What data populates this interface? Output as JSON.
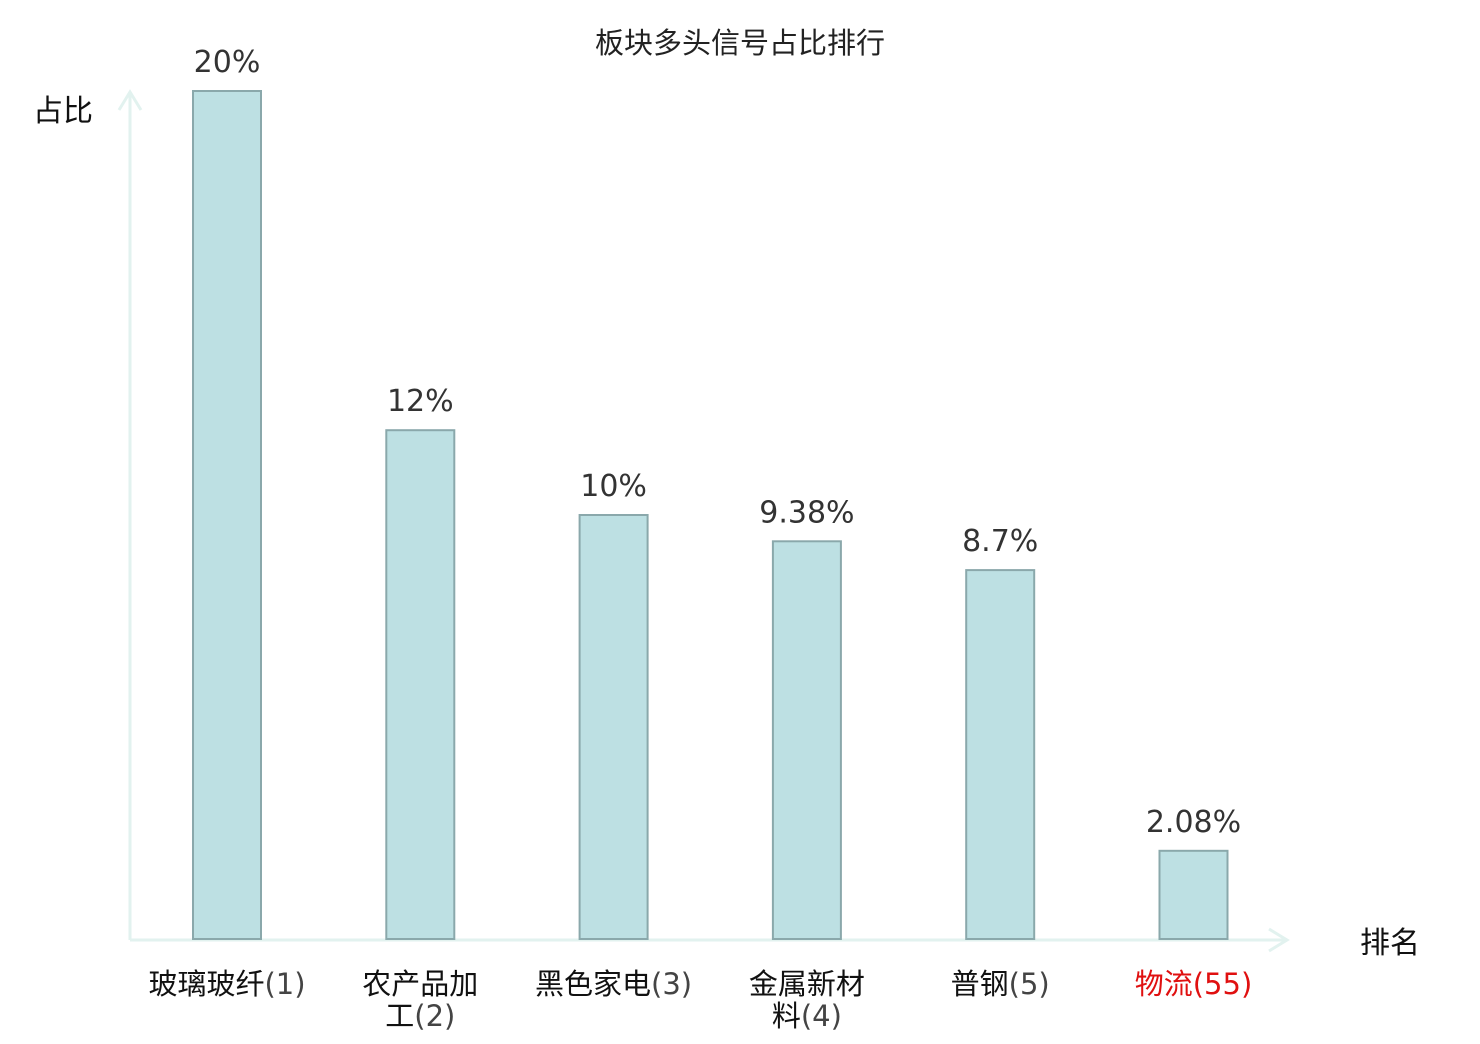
{
  "chart_data": {
    "type": "bar",
    "title": "板块多头信号占比排行",
    "xlabel": "排名",
    "ylabel": "占比",
    "ylim": [
      0,
      20
    ],
    "grid": false,
    "legend": "none",
    "categories": [
      {
        "name": "玻璃玻纤",
        "rank": "(1)",
        "highlight": false
      },
      {
        "name": "农产品加工",
        "rank": "(2)",
        "highlight": false
      },
      {
        "name": "黑色家电",
        "rank": "(3)",
        "highlight": false
      },
      {
        "name": "金属新材料",
        "rank": "(4)",
        "highlight": false
      },
      {
        "name": "普钢",
        "rank": "(5)",
        "highlight": false
      },
      {
        "name": "物流",
        "rank": "(55)",
        "highlight": true
      }
    ],
    "values": [
      20,
      12,
      10,
      9.38,
      8.7,
      2.08
    ],
    "value_labels": [
      "20%",
      "12%",
      "10%",
      "9.38%",
      "8.7%",
      "2.08%"
    ],
    "colors": {
      "bar_fill": "#bde0e3",
      "bar_stroke": "#8aa8ab",
      "axis": "#e2f2ef",
      "highlight_text": "#e01010"
    }
  }
}
